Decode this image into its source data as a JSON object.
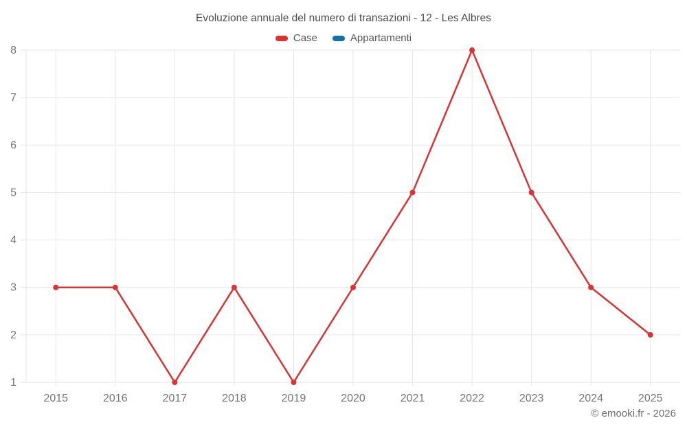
{
  "chart": {
    "title": "Evoluzione annuale del numero di transazioni - 12 - Les Albres",
    "watermark": "© emooki.fr - 2026",
    "legend": [
      {
        "label": "Case",
        "color": "#d93434"
      },
      {
        "label": "Appartamenti",
        "color": "#1473a6"
      }
    ]
  },
  "chart_data": {
    "type": "line",
    "title": "Evoluzione annuale del numero di transazioni - 12 - Les Albres",
    "categories": [
      "2015",
      "2016",
      "2017",
      "2018",
      "2019",
      "2020",
      "2021",
      "2022",
      "2023",
      "2024",
      "2025"
    ],
    "series": [
      {
        "name": "Case",
        "color": "#d93434",
        "values": [
          3,
          3,
          1,
          3,
          1,
          3,
          5,
          8,
          5,
          3,
          2
        ]
      },
      {
        "name": "Appartamenti",
        "color": "#1473a6",
        "values": []
      }
    ],
    "xlabel": "",
    "ylabel": "",
    "ylim": [
      1,
      8
    ],
    "yticks": [
      1,
      2,
      3,
      4,
      5,
      6,
      7,
      8
    ],
    "grid": true,
    "legend_position": "top"
  },
  "style": {
    "grid_color": "#e6e6e6",
    "tick_text_color": "#757575",
    "marker_radius": 4,
    "line_width": 2.5
  }
}
